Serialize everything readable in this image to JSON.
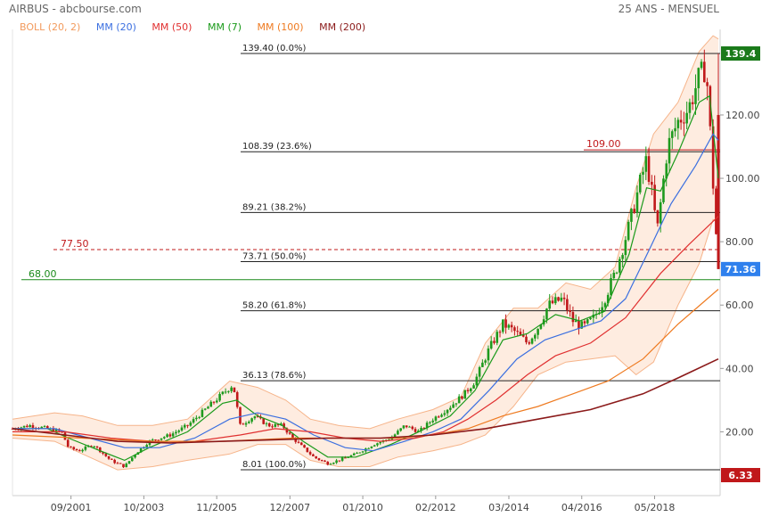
{
  "header": {
    "title": "AIRBUS - abcbourse.com",
    "period": "25 ANS - MENSUEL"
  },
  "legend": [
    {
      "label": "BOLL (20, 2)",
      "color": "#f29a5c"
    },
    {
      "label": "MM (20)",
      "color": "#3b6fe0"
    },
    {
      "label": "MM (50)",
      "color": "#e03030"
    },
    {
      "label": "MM (7)",
      "color": "#1a9a1a"
    },
    {
      "label": "MM (100)",
      "color": "#ee7a20"
    },
    {
      "label": "MM (200)",
      "color": "#8b1a1a"
    }
  ],
  "chart_data": {
    "type": "candlestick",
    "title": "AIRBUS",
    "y_axis": {
      "ticks": [
        20,
        40,
        60,
        80,
        100,
        120
      ],
      "ylim": [
        8,
        145
      ],
      "side": "right"
    },
    "x_axis": {
      "ticks": [
        "09/2001",
        "10/2003",
        "11/2005",
        "12/2007",
        "01/2010",
        "02/2012",
        "03/2014",
        "04/2016",
        "05/2018"
      ],
      "range": [
        2000.0,
        2020.2
      ]
    },
    "price_badges": [
      {
        "label": "139.4",
        "value": 139.4,
        "color": "#1a7a1a"
      },
      {
        "label": "71.36",
        "value": 71.36,
        "color": "#2f80ed"
      },
      {
        "label": "6.33",
        "value": 6.33,
        "color": "#c0181a"
      }
    ],
    "fibonacci": [
      {
        "label": "139.40  (0.0%)",
        "value": 139.4
      },
      {
        "label": "108.39  (23.6%)",
        "value": 108.39
      },
      {
        "label": "89.21  (38.2%)",
        "value": 89.21
      },
      {
        "label": "73.71  (50.0%)",
        "value": 73.71
      },
      {
        "label": "58.20  (61.8%)",
        "value": 58.2
      },
      {
        "label": "36.13  (78.6%)",
        "value": 36.13
      },
      {
        "label": "8.01  (100.0%)",
        "value": 8.01
      }
    ],
    "hlines": [
      {
        "label": "109.00",
        "value": 109.0,
        "color": "#c0181a",
        "style": "solid"
      },
      {
        "label": "77.50",
        "value": 77.5,
        "color": "#c0181a",
        "style": "dashed"
      },
      {
        "label": "68.00",
        "value": 68.0,
        "color": "#1a8a1a",
        "style": "solid"
      }
    ],
    "price_path": [
      [
        2000.0,
        21
      ],
      [
        2000.5,
        22
      ],
      [
        2001.0,
        21
      ],
      [
        2001.4,
        20
      ],
      [
        2001.6,
        15
      ],
      [
        2001.9,
        14
      ],
      [
        2002.3,
        16
      ],
      [
        2002.8,
        11
      ],
      [
        2003.2,
        9
      ],
      [
        2003.5,
        13
      ],
      [
        2003.9,
        17
      ],
      [
        2004.5,
        19
      ],
      [
        2005.0,
        22
      ],
      [
        2005.5,
        27
      ],
      [
        2006.0,
        32
      ],
      [
        2006.3,
        35
      ],
      [
        2006.5,
        22
      ],
      [
        2006.9,
        25
      ],
      [
        2007.3,
        22
      ],
      [
        2007.7,
        22
      ],
      [
        2008.0,
        18
      ],
      [
        2008.3,
        15
      ],
      [
        2008.6,
        12
      ],
      [
        2009.0,
        10
      ],
      [
        2009.3,
        11
      ],
      [
        2009.8,
        13
      ],
      [
        2010.3,
        16
      ],
      [
        2010.8,
        18
      ],
      [
        2011.2,
        22
      ],
      [
        2011.6,
        20
      ],
      [
        2012.0,
        24
      ],
      [
        2012.5,
        28
      ],
      [
        2012.9,
        32
      ],
      [
        2013.2,
        36
      ],
      [
        2013.6,
        46
      ],
      [
        2014.0,
        54
      ],
      [
        2014.3,
        52
      ],
      [
        2014.7,
        48
      ],
      [
        2015.0,
        53
      ],
      [
        2015.3,
        60
      ],
      [
        2015.7,
        62
      ],
      [
        2016.0,
        55
      ],
      [
        2016.3,
        53
      ],
      [
        2016.6,
        56
      ],
      [
        2016.9,
        62
      ],
      [
        2017.2,
        70
      ],
      [
        2017.6,
        85
      ],
      [
        2017.9,
        98
      ],
      [
        2018.1,
        106
      ],
      [
        2018.3,
        92
      ],
      [
        2018.4,
        83
      ],
      [
        2018.7,
        110
      ],
      [
        2019.0,
        118
      ],
      [
        2019.3,
        122
      ],
      [
        2019.6,
        132
      ],
      [
        2019.8,
        135
      ],
      [
        2019.9,
        118
      ],
      [
        2020.05,
        88
      ],
      [
        2020.15,
        71.36
      ]
    ],
    "series": [
      {
        "name": "MM (7)",
        "color": "#1a9a1a",
        "points": [
          [
            2000.0,
            21
          ],
          [
            2001.0,
            21
          ],
          [
            2001.6,
            18
          ],
          [
            2002.5,
            14
          ],
          [
            2003.2,
            11
          ],
          [
            2003.9,
            15
          ],
          [
            2005.0,
            20
          ],
          [
            2006.0,
            29
          ],
          [
            2006.4,
            30
          ],
          [
            2007.0,
            25
          ],
          [
            2007.7,
            22
          ],
          [
            2008.3,
            17
          ],
          [
            2009.0,
            12
          ],
          [
            2009.8,
            12
          ],
          [
            2010.8,
            16
          ],
          [
            2011.6,
            20
          ],
          [
            2012.5,
            25
          ],
          [
            2013.2,
            33
          ],
          [
            2014.0,
            49
          ],
          [
            2014.7,
            51
          ],
          [
            2015.5,
            57
          ],
          [
            2016.2,
            55
          ],
          [
            2016.9,
            58
          ],
          [
            2017.6,
            76
          ],
          [
            2018.1,
            97
          ],
          [
            2018.5,
            96
          ],
          [
            2019.0,
            108
          ],
          [
            2019.6,
            124
          ],
          [
            2019.9,
            126
          ],
          [
            2020.15,
            100
          ]
        ]
      },
      {
        "name": "MM (20)",
        "color": "#3b6fe0",
        "points": [
          [
            2000.0,
            21
          ],
          [
            2001.2,
            21
          ],
          [
            2002.2,
            18
          ],
          [
            2003.2,
            15
          ],
          [
            2004.2,
            15
          ],
          [
            2005.2,
            18
          ],
          [
            2006.2,
            24
          ],
          [
            2007.0,
            26
          ],
          [
            2007.8,
            24
          ],
          [
            2008.6,
            19
          ],
          [
            2009.5,
            15
          ],
          [
            2010.3,
            14
          ],
          [
            2011.2,
            17
          ],
          [
            2012.0,
            20
          ],
          [
            2012.8,
            24
          ],
          [
            2013.6,
            33
          ],
          [
            2014.4,
            43
          ],
          [
            2015.2,
            49
          ],
          [
            2016.0,
            52
          ],
          [
            2016.8,
            55
          ],
          [
            2017.5,
            62
          ],
          [
            2018.2,
            78
          ],
          [
            2018.8,
            92
          ],
          [
            2019.5,
            104
          ],
          [
            2020.0,
            114
          ],
          [
            2020.15,
            112
          ]
        ]
      },
      {
        "name": "MM (50)",
        "color": "#e03030",
        "points": [
          [
            2000.0,
            20
          ],
          [
            2001.5,
            20
          ],
          [
            2002.8,
            18
          ],
          [
            2004.0,
            17
          ],
          [
            2005.2,
            17
          ],
          [
            2006.5,
            19
          ],
          [
            2007.5,
            21
          ],
          [
            2008.5,
            20
          ],
          [
            2009.5,
            18
          ],
          [
            2010.5,
            17
          ],
          [
            2011.5,
            18
          ],
          [
            2012.3,
            20
          ],
          [
            2013.0,
            24
          ],
          [
            2013.8,
            30
          ],
          [
            2014.7,
            38
          ],
          [
            2015.5,
            44
          ],
          [
            2016.5,
            48
          ],
          [
            2017.5,
            56
          ],
          [
            2018.5,
            70
          ],
          [
            2019.3,
            79
          ],
          [
            2020.15,
            88
          ]
        ]
      },
      {
        "name": "MM (100)",
        "color": "#ee7a20",
        "points": [
          [
            2000.0,
            19
          ],
          [
            2002.0,
            18
          ],
          [
            2004.0,
            17
          ],
          [
            2006.0,
            17
          ],
          [
            2008.0,
            18
          ],
          [
            2009.5,
            18
          ],
          [
            2011.0,
            18
          ],
          [
            2012.0,
            19
          ],
          [
            2013.0,
            21
          ],
          [
            2014.0,
            25
          ],
          [
            2015.0,
            28
          ],
          [
            2016.0,
            32
          ],
          [
            2017.0,
            36
          ],
          [
            2018.0,
            43
          ],
          [
            2019.0,
            54
          ],
          [
            2020.15,
            65
          ]
        ]
      },
      {
        "name": "MM (200)",
        "color": "#8b1a1a",
        "points": [
          [
            2000.0,
            21
          ],
          [
            2001.5,
            19
          ],
          [
            2003.0,
            17
          ],
          [
            2004.5,
            16.5
          ],
          [
            2006.0,
            17
          ],
          [
            2007.5,
            17.5
          ],
          [
            2009.0,
            18
          ],
          [
            2010.5,
            18
          ],
          [
            2012.0,
            19
          ],
          [
            2013.5,
            21
          ],
          [
            2015.0,
            24
          ],
          [
            2016.5,
            27
          ],
          [
            2018.0,
            32
          ],
          [
            2019.0,
            37
          ],
          [
            2020.15,
            43
          ]
        ]
      }
    ],
    "bollinger": {
      "upper": [
        [
          2000.0,
          24
        ],
        [
          2001.2,
          26
        ],
        [
          2002.0,
          25
        ],
        [
          2003.0,
          22
        ],
        [
          2004.0,
          22
        ],
        [
          2005.0,
          24
        ],
        [
          2006.2,
          36
        ],
        [
          2007.0,
          34
        ],
        [
          2007.8,
          30
        ],
        [
          2008.5,
          24
        ],
        [
          2009.3,
          22
        ],
        [
          2010.2,
          21
        ],
        [
          2011.0,
          24
        ],
        [
          2012.0,
          27
        ],
        [
          2012.8,
          31
        ],
        [
          2013.5,
          48
        ],
        [
          2014.3,
          59
        ],
        [
          2015.0,
          59
        ],
        [
          2015.8,
          67
        ],
        [
          2016.5,
          65
        ],
        [
          2017.2,
          72
        ],
        [
          2017.8,
          97
        ],
        [
          2018.3,
          114
        ],
        [
          2019.0,
          124
        ],
        [
          2019.6,
          140
        ],
        [
          2020.0,
          145
        ],
        [
          2020.15,
          144
        ]
      ],
      "lower": [
        [
          2000.0,
          18
        ],
        [
          2001.2,
          17
        ],
        [
          2002.0,
          13
        ],
        [
          2003.0,
          8
        ],
        [
          2004.0,
          9
        ],
        [
          2005.0,
          11
        ],
        [
          2006.2,
          13
        ],
        [
          2007.0,
          16
        ],
        [
          2007.8,
          16
        ],
        [
          2008.5,
          11
        ],
        [
          2009.3,
          9
        ],
        [
          2010.2,
          9
        ],
        [
          2011.0,
          12
        ],
        [
          2012.0,
          14
        ],
        [
          2012.8,
          16
        ],
        [
          2013.5,
          19
        ],
        [
          2014.3,
          28
        ],
        [
          2015.0,
          38
        ],
        [
          2015.8,
          42
        ],
        [
          2016.5,
          43
        ],
        [
          2017.2,
          44
        ],
        [
          2017.8,
          38
        ],
        [
          2018.3,
          42
        ],
        [
          2019.0,
          60
        ],
        [
          2019.6,
          73
        ],
        [
          2020.0,
          87
        ],
        [
          2020.15,
          86
        ]
      ]
    }
  }
}
